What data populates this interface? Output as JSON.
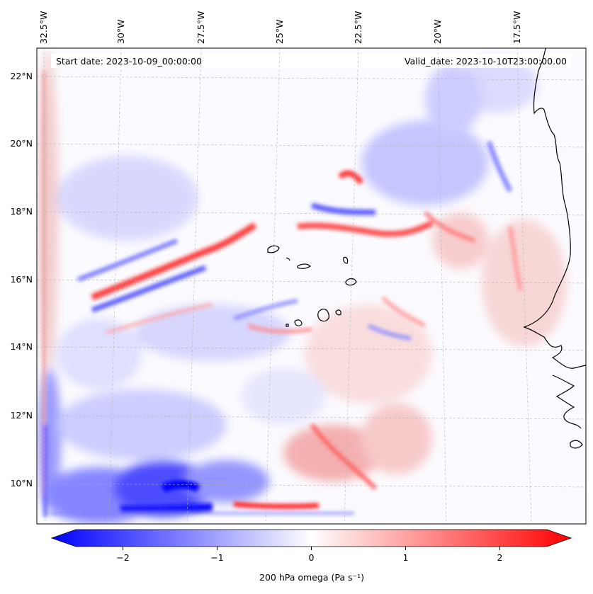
{
  "map": {
    "start_date_label": "Start date: 2023-10-09_00:00:00",
    "valid_date_label": "Valid_date: 2023-10-10T23:00:00.00",
    "longitude_labels": [
      "32.5°W",
      "30°W",
      "27.5°W",
      "25°W",
      "22.5°W",
      "20°W",
      "17.5°W"
    ],
    "latitude_labels": [
      "22°N",
      "20°N",
      "18°N",
      "16°N",
      "14°N",
      "12°N",
      "10°N"
    ],
    "extent": {
      "lon_min": -32.8,
      "lon_max": -15.8,
      "lat_min": 8.8,
      "lat_max": 22.7
    },
    "field": "200 hPa omega",
    "gridlines": true
  },
  "colorbar": {
    "label": "200 hPa omega (Pa s⁻¹)",
    "tick_labels": [
      "−2",
      "−1",
      "0",
      "1",
      "2"
    ],
    "tick_values": [
      -2,
      -1,
      0,
      1,
      2
    ],
    "range": [
      -2.5,
      2.5
    ],
    "extend": "both",
    "colormap": "bwr",
    "color_low": "#0000ff",
    "color_mid": "#ffffff",
    "color_high": "#ff0000"
  }
}
